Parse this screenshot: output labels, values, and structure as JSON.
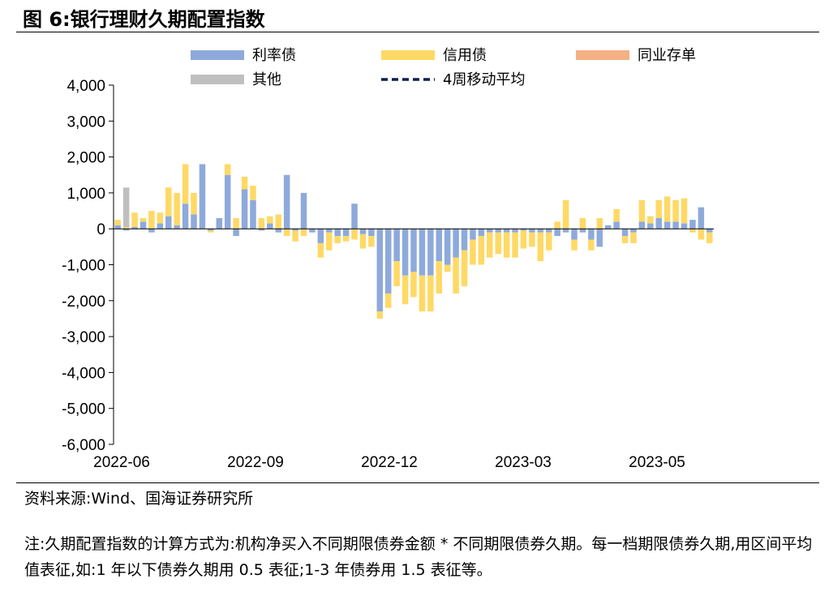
{
  "title": "图 6:银行理财久期配置指数",
  "source": "资料来源:Wind、国海证券研究所",
  "note": "注:久期配置指数的计算方式为:机构净买入不同期限债券金额 * 不同期限债券久期。每一档期限债券久期,用区间平均值表征,如:1 年以下债券久期用 0.5 表征;1-3 年债券用 1.5 表征等。",
  "chart_data": {
    "type": "bar",
    "stacked": true,
    "ylim": [
      -6000,
      4000
    ],
    "yticks": [
      "4,000",
      "3,000",
      "2,000",
      "1,000",
      "0",
      "-1,000",
      "-2,000",
      "-3,000",
      "-4,000",
      "-5,000",
      "-6,000"
    ],
    "xticks": [
      "2022-06",
      "2022-09",
      "2022-12",
      "2023-03",
      "2023-05"
    ],
    "legend": [
      "利率债",
      "信用债",
      "同业存单",
      "其他",
      "4周移动平均"
    ],
    "colors": {
      "rate": "#8eaadb",
      "credit": "#ffd966",
      "ncd": "#f4b183",
      "other": "#bfbfbf",
      "ma": "#0b1f4d"
    },
    "series": [
      {
        "name": "利率债",
        "values": [
          100,
          -50,
          50,
          200,
          -100,
          150,
          350,
          100,
          700,
          400,
          1800,
          -50,
          300,
          1500,
          -200,
          1100,
          800,
          -50,
          150,
          -100,
          1500,
          -50,
          1000,
          -100,
          -400,
          -100,
          -200,
          -200,
          700,
          -150,
          -200,
          -2300,
          -1800,
          -900,
          -1300,
          -1200,
          -1300,
          -1300,
          -900,
          -1000,
          -800,
          -600,
          -300,
          -200,
          -100,
          -100,
          -100,
          -100,
          -50,
          -100,
          -100,
          -100,
          -200,
          -100,
          -300,
          -100,
          -300,
          -500,
          100,
          200,
          -200,
          -100,
          200,
          150,
          300,
          200,
          200,
          150,
          250,
          600,
          -100
        ]
      },
      {
        "name": "信用债",
        "values": [
          150,
          50,
          400,
          100,
          500,
          300,
          800,
          900,
          1100,
          600,
          0,
          -50,
          0,
          300,
          300,
          350,
          400,
          300,
          200,
          400,
          -200,
          -300,
          -200,
          0,
          -400,
          -500,
          -200,
          -150,
          -300,
          -400,
          -300,
          -200,
          -400,
          -700,
          -800,
          -700,
          -1000,
          -1000,
          -900,
          -200,
          -1000,
          -1000,
          -700,
          -800,
          -700,
          -600,
          -700,
          -700,
          -500,
          -400,
          -800,
          -500,
          200,
          800,
          -300,
          300,
          -300,
          300,
          0,
          350,
          -200,
          -300,
          600,
          200,
          500,
          700,
          600,
          700,
          -100,
          -300,
          -300
        ]
      },
      {
        "name": "同业存单",
        "values": [
          0,
          0,
          0,
          0,
          0,
          0,
          0,
          0,
          0,
          0,
          0,
          0,
          0,
          0,
          0,
          0,
          0,
          0,
          0,
          0,
          0,
          0,
          0,
          0,
          0,
          0,
          0,
          0,
          0,
          0,
          0,
          0,
          0,
          0,
          0,
          0,
          0,
          0,
          0,
          0,
          0,
          0,
          0,
          0,
          0,
          0,
          0,
          0,
          0,
          0,
          0,
          0,
          0,
          0,
          0,
          0,
          0,
          0,
          0,
          0,
          0,
          0,
          0,
          0,
          0,
          0,
          0,
          0,
          0,
          0,
          0
        ]
      },
      {
        "name": "其他",
        "values": [
          0,
          1100,
          0,
          0,
          0,
          0,
          0,
          0,
          0,
          0,
          0,
          0,
          0,
          0,
          0,
          0,
          0,
          0,
          0,
          0,
          0,
          0,
          0,
          0,
          0,
          0,
          0,
          0,
          0,
          0,
          0,
          0,
          0,
          0,
          0,
          0,
          0,
          0,
          0,
          0,
          0,
          0,
          0,
          0,
          0,
          0,
          0,
          0,
          0,
          0,
          0,
          0,
          0,
          0,
          0,
          0,
          0,
          0,
          0,
          0,
          0,
          0,
          0,
          0,
          0,
          0,
          0,
          0,
          0,
          0,
          0
        ]
      },
      {
        "name": "4周移动平均",
        "values": []
      }
    ]
  }
}
